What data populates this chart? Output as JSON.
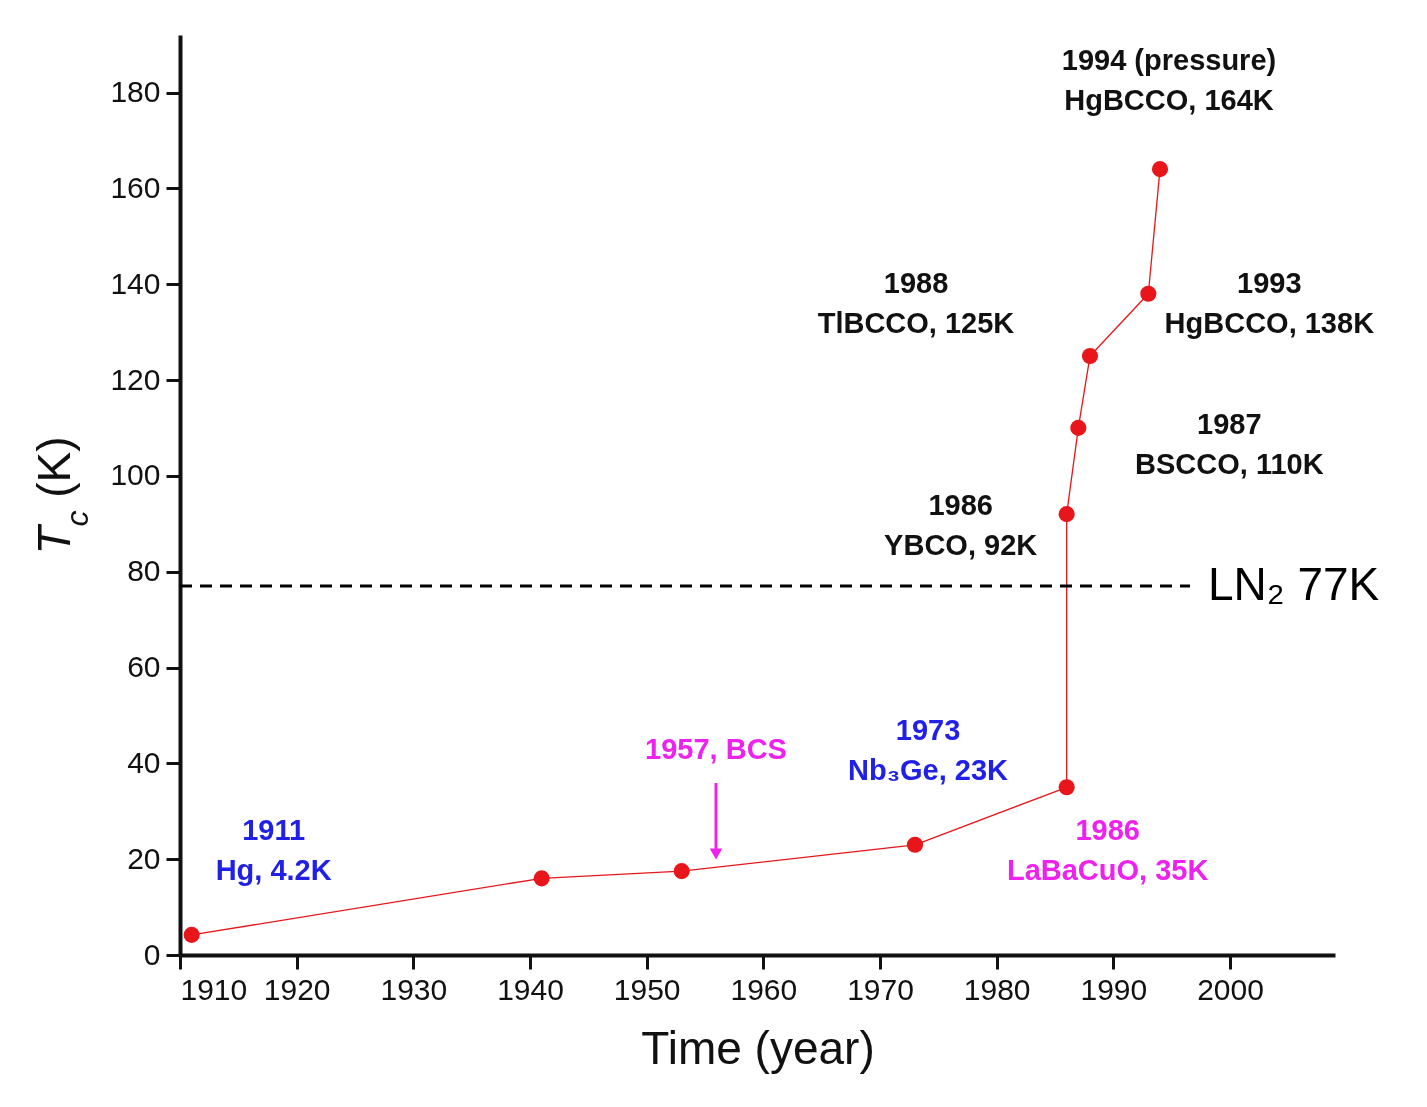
{
  "chart_data": {
    "type": "line",
    "xlabel": "Time (year)",
    "ylabel": "T$_{c}$ (K)",
    "x": [
      1911,
      1941,
      1953,
      1973,
      1986,
      1986,
      1987,
      1988,
      1993,
      1994
    ],
    "series": [
      {
        "color": "#e8161b",
        "values": [
          4.2,
          16,
          17.5,
          23,
          35,
          92,
          110,
          125,
          138,
          164
        ]
      }
    ],
    "xlim": [
      1910,
      2009
    ],
    "xticks": [
      1910,
      1920,
      1930,
      1940,
      1950,
      1960,
      1970,
      1980,
      1990,
      2000
    ],
    "ylim": [
      0,
      192
    ],
    "yticks": [
      0,
      20,
      40,
      60,
      80,
      100,
      120,
      140,
      160,
      180
    ],
    "marker": "circle",
    "grid": false,
    "ref_lines": [
      {
        "axis": "y",
        "value": 77,
        "label": "LN₂ 77K",
        "line_style": "dashed",
        "color": "#000000"
      }
    ],
    "annotations": [
      {
        "text": "1911\nHg, 4.2K",
        "x": 1911,
        "y": 4.2
      },
      "1957, BCS",
      {
        "text": "1973\nNb₃Ge, 23K",
        "x": 1973,
        "y": 23
      },
      {
        "text": "1986\nLaBaCuO, 35K",
        "x": 1986,
        "y": 35
      },
      {
        "text": "1986\nYBCO, 92K",
        "x": 1986,
        "y": 92
      },
      {
        "text": "1987\nBSCCO, 110K",
        "x": 1987,
        "y": 110
      },
      {
        "text": "1988\nTlBCCO, 125K",
        "x": 1988,
        "y": 125
      },
      {
        "text": "1993\nHgBCCO, 138K",
        "x": 1993,
        "y": 138
      },
      {
        "text": "1994 (pressure)\nHgBCCO, 164K",
        "x": 1994,
        "y": 164
      }
    ]
  }
}
